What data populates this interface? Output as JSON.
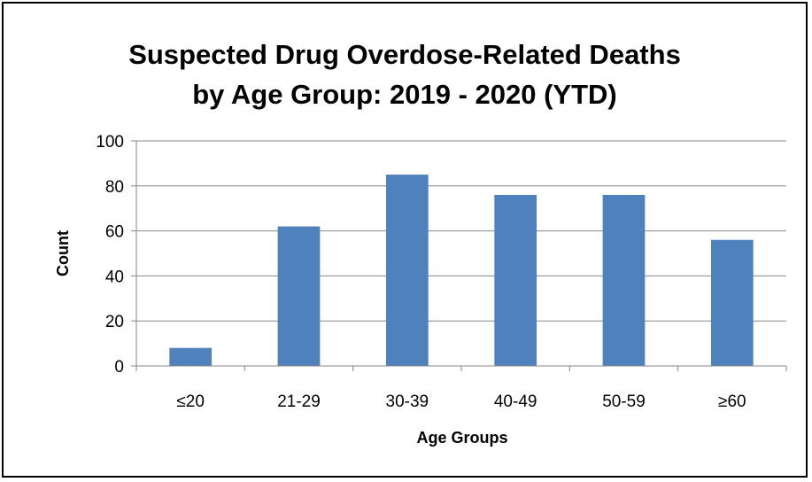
{
  "chart_data": {
    "type": "bar",
    "title": [
      "Suspected Drug Overdose-Related Deaths",
      "by Age Group: 2019 - 2020 (YTD)"
    ],
    "xlabel": "Age Groups",
    "ylabel": "Count",
    "categories": [
      "≤20",
      "21-29",
      "30-39",
      "40-49",
      "50-59",
      "≥60"
    ],
    "values": [
      8,
      62,
      85,
      76,
      76,
      56
    ],
    "ylim": [
      0,
      100
    ],
    "yticks": [
      0,
      20,
      40,
      60,
      80,
      100
    ],
    "grid": true,
    "legend": "none",
    "colors": {
      "bar": "#4F81BD",
      "grid": "#878787",
      "axis": "#878787",
      "text": "#000000"
    }
  }
}
